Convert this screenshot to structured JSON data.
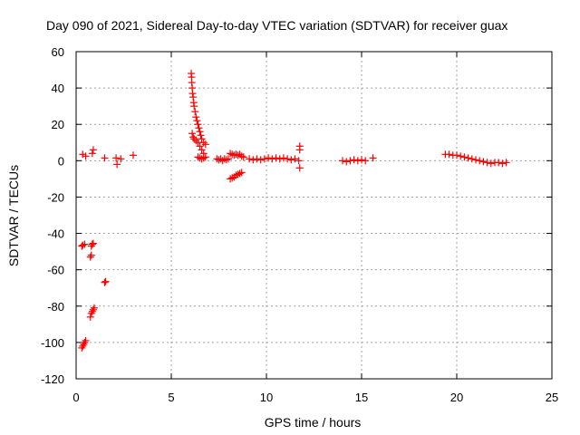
{
  "chart_data": {
    "type": "scatter",
    "title": "Day 090 of 2021, Sidereal Day-to-day VTEC variation (SDTVAR) for receiver guax",
    "xlabel": "GPS time / hours",
    "ylabel": "SDTVAR / TECUs",
    "xlim": [
      0,
      25
    ],
    "ylim": [
      -120,
      60
    ],
    "xticks": [
      0,
      5,
      10,
      15,
      20,
      25
    ],
    "yticks": [
      -120,
      -100,
      -80,
      -60,
      -40,
      -20,
      0,
      20,
      40,
      60
    ],
    "grid": true,
    "marker": "+",
    "color": "#ff0000",
    "series": [
      {
        "name": "SDTVAR",
        "points": [
          [
            0.35,
            3.5
          ],
          [
            0.5,
            2.5
          ],
          [
            0.85,
            4
          ],
          [
            0.9,
            6
          ],
          [
            1.5,
            1.5
          ],
          [
            2.1,
            1.5
          ],
          [
            2.15,
            -2
          ],
          [
            2.35,
            1
          ],
          [
            3.0,
            3
          ],
          [
            0.3,
            -47
          ],
          [
            0.35,
            -46.5
          ],
          [
            0.45,
            -46
          ],
          [
            0.8,
            -47
          ],
          [
            0.85,
            -46
          ],
          [
            0.9,
            -45.5
          ],
          [
            0.75,
            -53
          ],
          [
            0.8,
            -52
          ],
          [
            1.5,
            -67
          ],
          [
            1.55,
            -66.5
          ],
          [
            0.75,
            -86
          ],
          [
            0.8,
            -84
          ],
          [
            0.85,
            -83
          ],
          [
            0.9,
            -82
          ],
          [
            0.95,
            -81
          ],
          [
            0.3,
            -103
          ],
          [
            0.35,
            -102
          ],
          [
            0.4,
            -101
          ],
          [
            0.45,
            -100
          ],
          [
            0.5,
            -99
          ],
          [
            6.05,
            48
          ],
          [
            6.07,
            46
          ],
          [
            6.08,
            43
          ],
          [
            6.1,
            40
          ],
          [
            6.12,
            37
          ],
          [
            6.15,
            35
          ],
          [
            6.18,
            32
          ],
          [
            6.2,
            30
          ],
          [
            6.25,
            27
          ],
          [
            6.3,
            24
          ],
          [
            6.35,
            22
          ],
          [
            6.4,
            20
          ],
          [
            6.45,
            18
          ],
          [
            6.5,
            16
          ],
          [
            6.55,
            14
          ],
          [
            6.6,
            12
          ],
          [
            6.7,
            10
          ],
          [
            6.8,
            9
          ],
          [
            6.1,
            15
          ],
          [
            6.15,
            13
          ],
          [
            6.2,
            12
          ],
          [
            6.3,
            11
          ],
          [
            6.4,
            10
          ],
          [
            6.5,
            8
          ],
          [
            6.6,
            6
          ],
          [
            6.7,
            4
          ],
          [
            6.4,
            2
          ],
          [
            6.5,
            1.5
          ],
          [
            6.6,
            1
          ],
          [
            6.7,
            1.5
          ],
          [
            6.8,
            2
          ],
          [
            7.4,
            1
          ],
          [
            7.5,
            0.5
          ],
          [
            7.6,
            1
          ],
          [
            7.7,
            0
          ],
          [
            7.8,
            1
          ],
          [
            7.9,
            0.5
          ],
          [
            8.0,
            1
          ],
          [
            8.1,
            4
          ],
          [
            8.2,
            3.5
          ],
          [
            8.3,
            3
          ],
          [
            8.4,
            3.5
          ],
          [
            8.5,
            3
          ],
          [
            8.6,
            3.5
          ],
          [
            8.7,
            2.5
          ],
          [
            8.8,
            2
          ],
          [
            8.1,
            -10
          ],
          [
            8.2,
            -9.5
          ],
          [
            8.3,
            -9
          ],
          [
            8.4,
            -8
          ],
          [
            8.5,
            -7.5
          ],
          [
            8.6,
            -7
          ],
          [
            8.7,
            -6.5
          ],
          [
            9.1,
            1
          ],
          [
            9.3,
            0.5
          ],
          [
            9.5,
            1
          ],
          [
            9.7,
            0.5
          ],
          [
            9.9,
            1
          ],
          [
            10.1,
            1.5
          ],
          [
            10.3,
            1
          ],
          [
            10.5,
            1.5
          ],
          [
            10.7,
            1
          ],
          [
            10.9,
            1.5
          ],
          [
            11.1,
            1
          ],
          [
            11.3,
            0.5
          ],
          [
            11.5,
            1
          ],
          [
            11.7,
            0
          ],
          [
            11.75,
            8
          ],
          [
            11.75,
            6
          ],
          [
            11.75,
            -4
          ],
          [
            14.0,
            0
          ],
          [
            14.2,
            -0.5
          ],
          [
            14.4,
            0
          ],
          [
            14.6,
            0.5
          ],
          [
            14.8,
            0
          ],
          [
            15.0,
            0.5
          ],
          [
            15.2,
            0
          ],
          [
            15.6,
            1.5
          ],
          [
            19.4,
            3.5
          ],
          [
            19.6,
            3.5
          ],
          [
            19.8,
            3
          ],
          [
            20.0,
            3
          ],
          [
            20.2,
            2.5
          ],
          [
            20.4,
            2
          ],
          [
            20.6,
            1.5
          ],
          [
            20.8,
            1
          ],
          [
            21.0,
            0.5
          ],
          [
            21.2,
            0
          ],
          [
            21.4,
            -0.5
          ],
          [
            21.6,
            -1
          ],
          [
            21.8,
            -1.5
          ],
          [
            22.0,
            -1
          ],
          [
            22.2,
            -1
          ],
          [
            22.4,
            -1.5
          ],
          [
            22.6,
            -1
          ]
        ]
      }
    ]
  }
}
